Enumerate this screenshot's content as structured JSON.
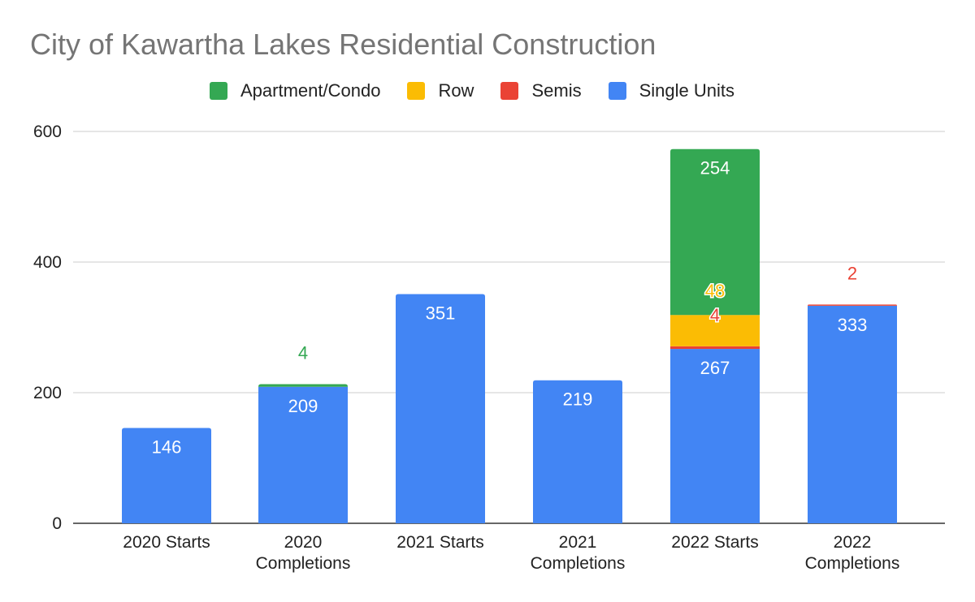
{
  "chart_data": {
    "type": "bar",
    "stacked": true,
    "title": "City of Kawartha Lakes Residential Construction",
    "categories": [
      [
        "2020 Starts"
      ],
      [
        "2020",
        "Completions"
      ],
      [
        "2021 Starts"
      ],
      [
        "2021",
        "Completions"
      ],
      [
        "2022 Starts"
      ],
      [
        "2022",
        "Completions"
      ]
    ],
    "ylim": [
      0,
      600
    ],
    "yticks": [
      "0",
      "200",
      "400",
      "600"
    ],
    "grid": true,
    "legend_position": "top",
    "legend": [
      "Apartment/Condo",
      "Row",
      "Semis",
      "Single Units"
    ],
    "series": [
      {
        "name": "Single Units",
        "color": "#4285f4",
        "values": [
          146,
          209,
          351,
          219,
          267,
          333
        ]
      },
      {
        "name": "Semis",
        "color": "#ea4335",
        "values": [
          0,
          0,
          0,
          0,
          4,
          2
        ]
      },
      {
        "name": "Row",
        "color": "#fbbc04",
        "values": [
          0,
          0,
          0,
          0,
          48,
          0
        ]
      },
      {
        "name": "Apartment/Condo",
        "color": "#34a853",
        "values": [
          0,
          4,
          0,
          0,
          254,
          0
        ]
      }
    ],
    "data_labels": [
      {
        "series": "Single Units",
        "category": 0,
        "text": "146"
      },
      {
        "series": "Single Units",
        "category": 1,
        "text": "209"
      },
      {
        "series": "Single Units",
        "category": 2,
        "text": "351"
      },
      {
        "series": "Single Units",
        "category": 3,
        "text": "219"
      },
      {
        "series": "Single Units",
        "category": 4,
        "text": "267"
      },
      {
        "series": "Single Units",
        "category": 5,
        "text": "333"
      },
      {
        "series": "Apartment/Condo",
        "category": 1,
        "text": "4"
      },
      {
        "series": "Apartment/Condo",
        "category": 4,
        "text": "254"
      },
      {
        "series": "Row",
        "category": 4,
        "text": "48"
      },
      {
        "series": "Semis",
        "category": 4,
        "text": "4"
      },
      {
        "series": "Semis",
        "category": 5,
        "text": "2"
      }
    ]
  }
}
